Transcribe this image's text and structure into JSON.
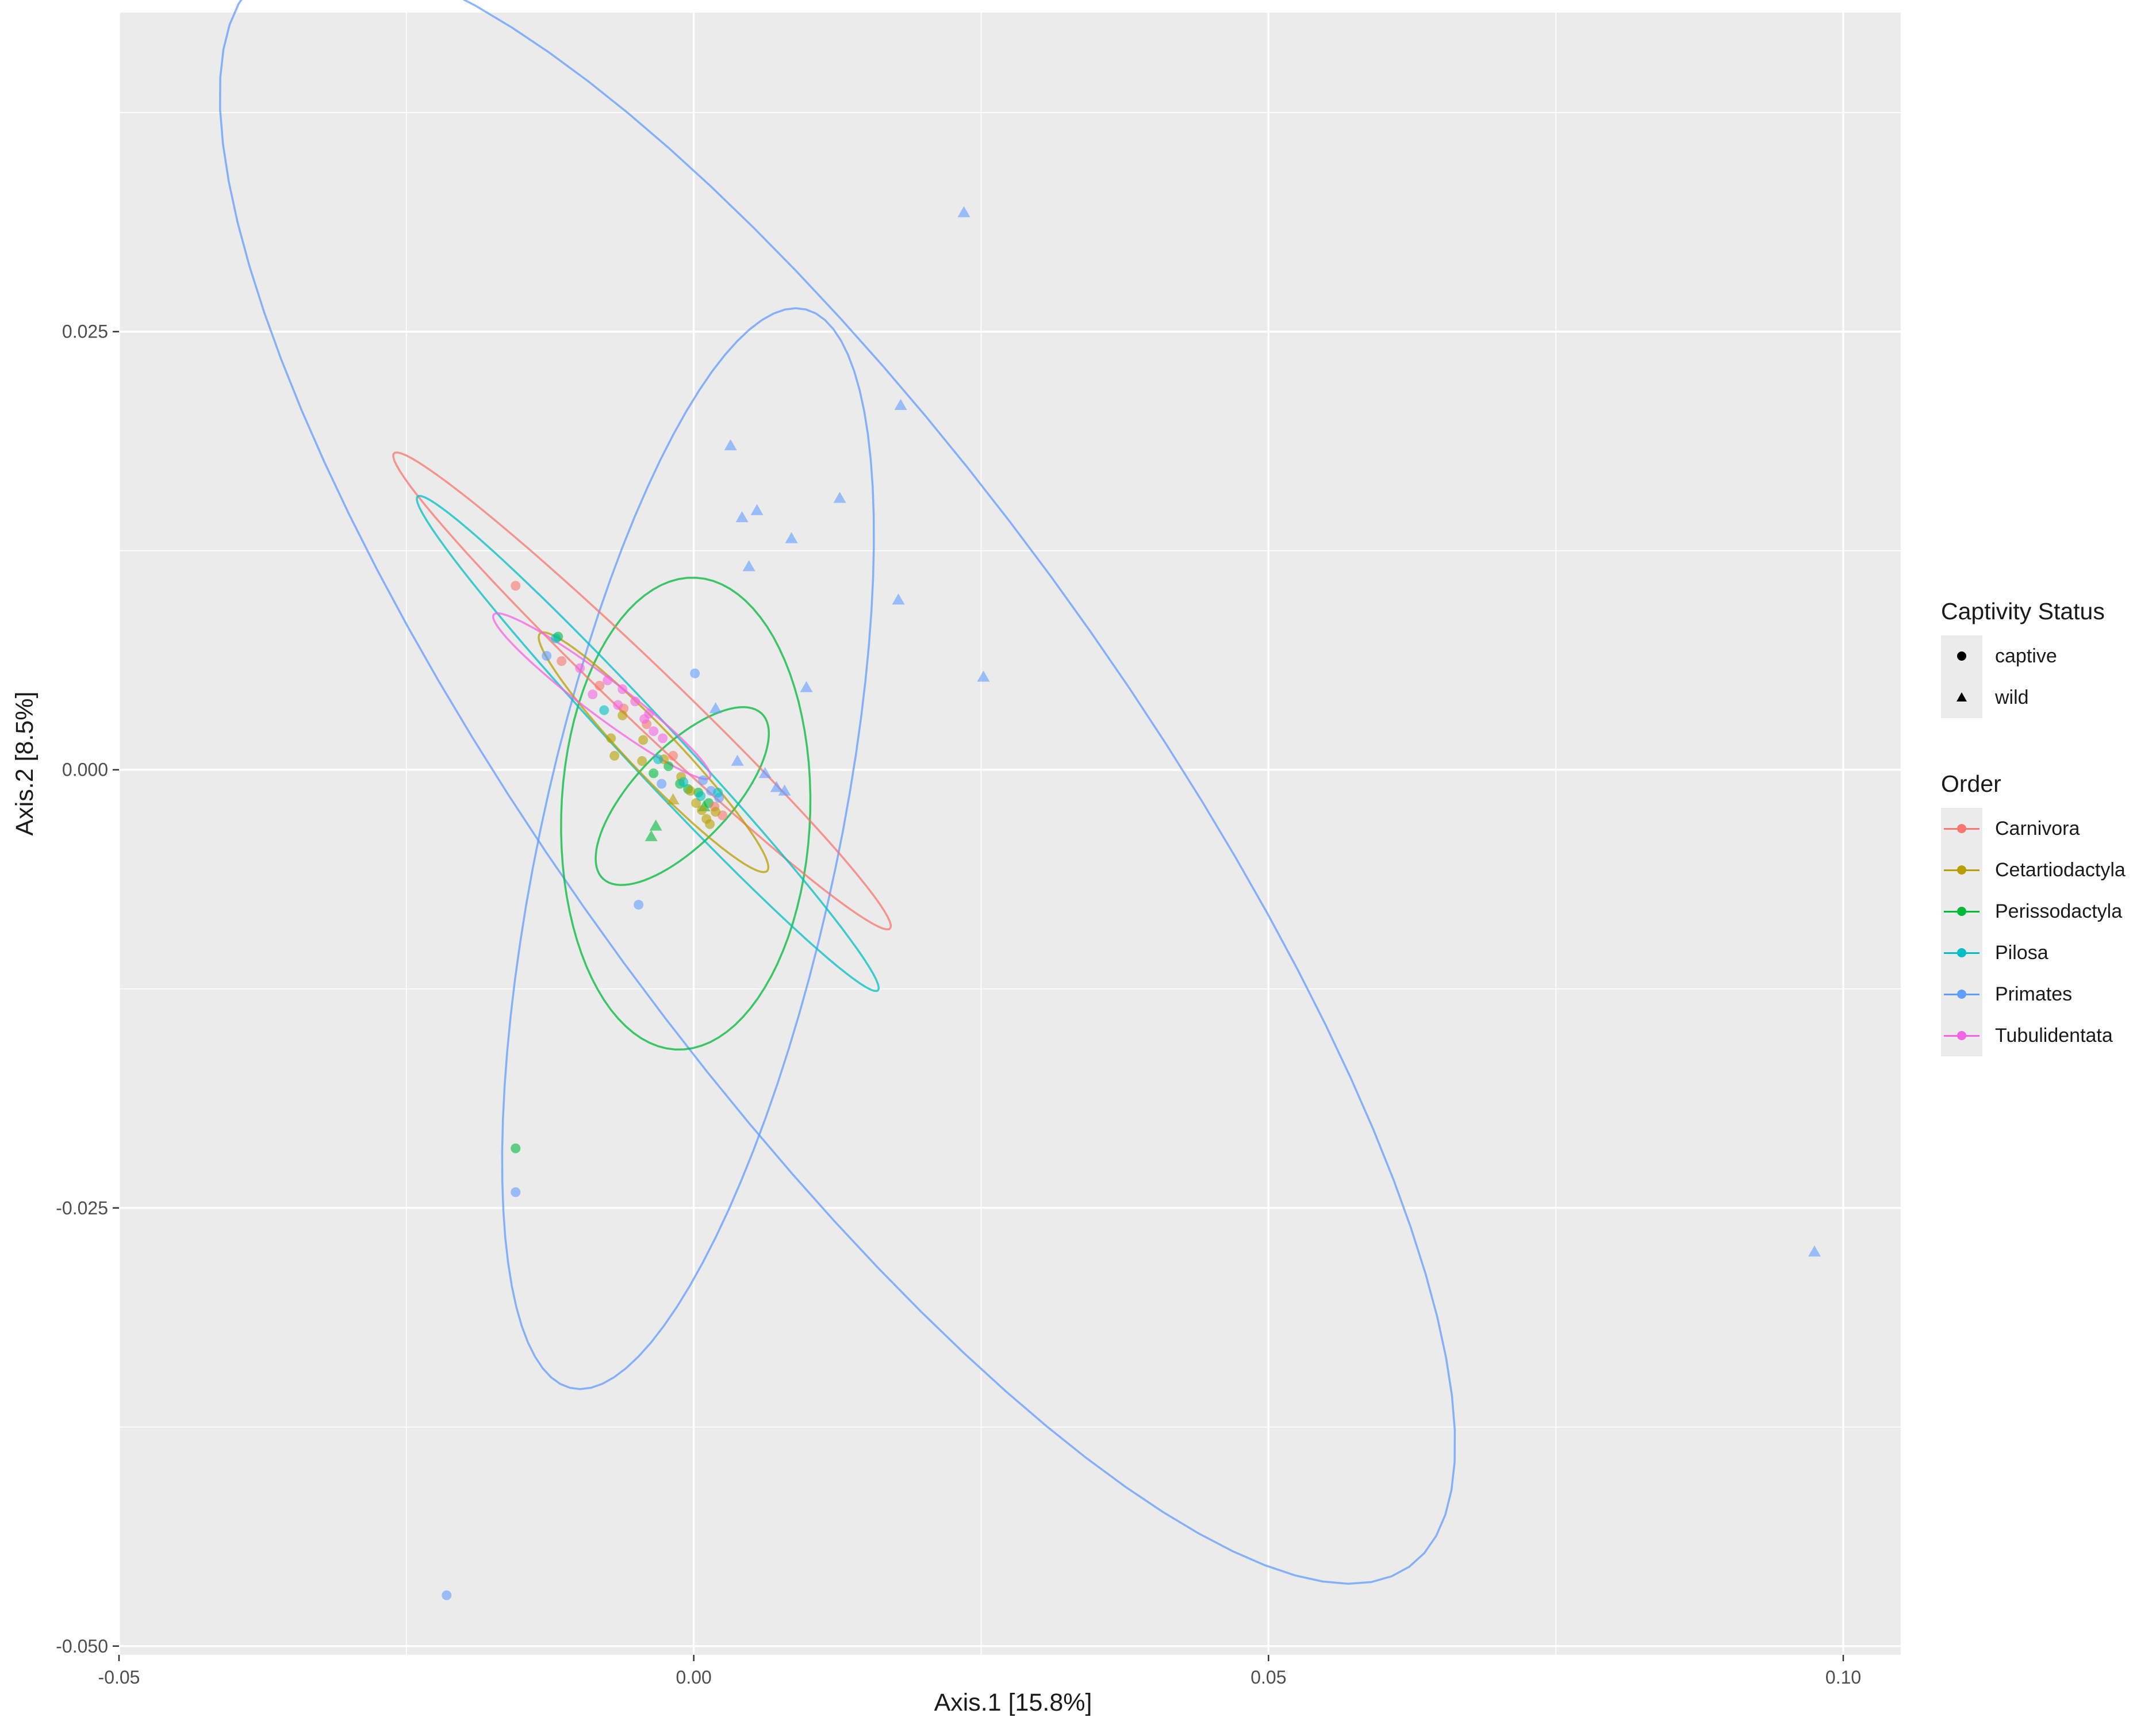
{
  "chart_data": {
    "type": "scatter",
    "xlabel": "Axis.1   [15.8%]",
    "ylabel": "Axis.2   [8.5%]",
    "xlim": [
      -0.05,
      0.105
    ],
    "ylim": [
      -0.0505,
      0.0432
    ],
    "x_ticks": [
      -0.05,
      0.0,
      0.05,
      0.1
    ],
    "x_tick_labels": [
      "-0.05",
      "0.00",
      "0.05",
      "0.10"
    ],
    "y_ticks": [
      -0.05,
      -0.025,
      0.0,
      0.025
    ],
    "y_tick_labels": [
      "-0.050",
      "-0.025",
      "0.000",
      "0.025"
    ],
    "grid": true,
    "legend_position": "right",
    "legends": {
      "captivity": {
        "title": "Captivity Status",
        "items": [
          {
            "label": "captive",
            "shape": "circle"
          },
          {
            "label": "wild",
            "shape": "triangle"
          }
        ]
      },
      "order": {
        "title": "Order",
        "items": [
          {
            "label": "Carnivora",
            "color": "#F8766D"
          },
          {
            "label": "Cetartiodactyla",
            "color": "#B79F00"
          },
          {
            "label": "Perissodactyla",
            "color": "#00BA38"
          },
          {
            "label": "Pilosa",
            "color": "#00BFC4"
          },
          {
            "label": "Primates",
            "color": "#619CFF"
          },
          {
            "label": "Tubulidentata",
            "color": "#F564E3"
          }
        ]
      }
    },
    "ellipses": [
      {
        "series": "Primates",
        "cx": 0.0125,
        "cy": 0.0,
        "rx": 0.068,
        "ry": 0.0205,
        "angle_deg": -40
      },
      {
        "series": "Primates",
        "cx": -0.0005,
        "cy": -0.0045,
        "rx": 0.0325,
        "ry": 0.0125,
        "angle_deg": 70
      },
      {
        "series": "Perissodactyla",
        "cx": -0.0007,
        "cy": -0.0025,
        "rx": 0.0135,
        "ry": 0.0108,
        "angle_deg": 83
      },
      {
        "series": "Perissodactyla",
        "cx": -0.001,
        "cy": -0.0015,
        "rx": 0.0085,
        "ry": 0.0032,
        "angle_deg": 30
      },
      {
        "series": "Carnivora",
        "cx": -0.0045,
        "cy": 0.0045,
        "rx": 0.0255,
        "ry": 0.0019,
        "angle_deg": -32
      },
      {
        "series": "Pilosa",
        "cx": -0.004,
        "cy": 0.0015,
        "rx": 0.0245,
        "ry": 0.0018,
        "angle_deg": -35
      },
      {
        "series": "Cetartiodactyla",
        "cx": -0.0035,
        "cy": 0.001,
        "rx": 0.012,
        "ry": 0.0016,
        "angle_deg": -34
      },
      {
        "series": "Tubulidentata",
        "cx": -0.008,
        "cy": 0.0042,
        "rx": 0.0105,
        "ry": 0.0012,
        "angle_deg": -26
      }
    ],
    "points": [
      {
        "series": "Primates",
        "shape": "triangle",
        "x": 0.0235,
        "y": 0.0318
      },
      {
        "series": "Primates",
        "shape": "triangle",
        "x": 0.018,
        "y": 0.0208
      },
      {
        "series": "Primates",
        "shape": "triangle",
        "x": 0.0032,
        "y": 0.0185
      },
      {
        "series": "Primates",
        "shape": "triangle",
        "x": 0.0127,
        "y": 0.0155
      },
      {
        "series": "Primates",
        "shape": "triangle",
        "x": 0.0055,
        "y": 0.0148
      },
      {
        "series": "Primates",
        "shape": "triangle",
        "x": 0.0042,
        "y": 0.0144
      },
      {
        "series": "Primates",
        "shape": "triangle",
        "x": 0.0085,
        "y": 0.0132
      },
      {
        "series": "Primates",
        "shape": "triangle",
        "x": 0.0048,
        "y": 0.0116
      },
      {
        "series": "Primates",
        "shape": "triangle",
        "x": 0.0178,
        "y": 0.0097
      },
      {
        "series": "Primates",
        "shape": "triangle",
        "x": 0.0252,
        "y": 0.0053
      },
      {
        "series": "Primates",
        "shape": "triangle",
        "x": 0.0098,
        "y": 0.0047
      },
      {
        "series": "Primates",
        "shape": "triangle",
        "x": 0.0019,
        "y": 0.0035
      },
      {
        "series": "Primates",
        "shape": "triangle",
        "x": 0.0038,
        "y": 0.0005
      },
      {
        "series": "Primates",
        "shape": "triangle",
        "x": 0.0062,
        "y": -0.0002
      },
      {
        "series": "Primates",
        "shape": "triangle",
        "x": 0.0072,
        "y": -0.001
      },
      {
        "series": "Primates",
        "shape": "triangle",
        "x": 0.0079,
        "y": -0.0012
      },
      {
        "series": "Primates",
        "shape": "triangle",
        "x": 0.0975,
        "y": -0.0275
      },
      {
        "series": "Primates",
        "shape": "circle",
        "x": 0.0001,
        "y": 0.0055
      },
      {
        "series": "Primates",
        "shape": "circle",
        "x": -0.0128,
        "y": 0.0065
      },
      {
        "series": "Primates",
        "shape": "circle",
        "x": -0.0048,
        "y": -0.0077
      },
      {
        "series": "Primates",
        "shape": "circle",
        "x": -0.0155,
        "y": -0.0241
      },
      {
        "series": "Primates",
        "shape": "circle",
        "x": -0.0215,
        "y": -0.0471
      },
      {
        "series": "Primates",
        "shape": "circle",
        "x": -0.0028,
        "y": -0.0008
      },
      {
        "series": "Primates",
        "shape": "circle",
        "x": 0.0015,
        "y": -0.0012
      },
      {
        "series": "Primates",
        "shape": "circle",
        "x": 0.0022,
        "y": -0.0016
      },
      {
        "series": "Primates",
        "shape": "circle",
        "x": 0.0008,
        "y": -0.0006
      },
      {
        "series": "Perissodactyla",
        "shape": "circle",
        "x": -0.0155,
        "y": -0.0216
      },
      {
        "series": "Perissodactyla",
        "shape": "circle",
        "x": -0.0118,
        "y": 0.0076
      },
      {
        "series": "Perissodactyla",
        "shape": "triangle",
        "x": -0.0037,
        "y": -0.0038
      },
      {
        "series": "Perissodactyla",
        "shape": "triangle",
        "x": -0.0033,
        "y": -0.0032
      },
      {
        "series": "Perissodactyla",
        "shape": "circle",
        "x": -0.0035,
        "y": -0.0002
      },
      {
        "series": "Perissodactyla",
        "shape": "circle",
        "x": -0.0022,
        "y": 0.0002
      },
      {
        "series": "Perissodactyla",
        "shape": "circle",
        "x": -0.0012,
        "y": -0.0008
      },
      {
        "series": "Perissodactyla",
        "shape": "circle",
        "x": -0.0005,
        "y": -0.0011
      },
      {
        "series": "Perissodactyla",
        "shape": "circle",
        "x": 0.0004,
        "y": -0.0013
      },
      {
        "series": "Perissodactyla",
        "shape": "circle",
        "x": 0.0013,
        "y": -0.0019
      },
      {
        "series": "Perissodactyla",
        "shape": "triangle",
        "x": 0.0009,
        "y": -0.0021
      },
      {
        "series": "Carnivora",
        "shape": "circle",
        "x": -0.0155,
        "y": 0.0105
      },
      {
        "series": "Carnivora",
        "shape": "circle",
        "x": -0.0115,
        "y": 0.0062
      },
      {
        "series": "Carnivora",
        "shape": "circle",
        "x": -0.0082,
        "y": 0.0048
      },
      {
        "series": "Carnivora",
        "shape": "circle",
        "x": -0.0061,
        "y": 0.0035
      },
      {
        "series": "Carnivora",
        "shape": "circle",
        "x": -0.0041,
        "y": 0.0026
      },
      {
        "series": "Carnivora",
        "shape": "circle",
        "x": -0.0018,
        "y": 0.0008
      },
      {
        "series": "Carnivora",
        "shape": "circle",
        "x": 0.0018,
        "y": -0.0021
      },
      {
        "series": "Carnivora",
        "shape": "circle",
        "x": 0.0025,
        "y": -0.0026
      },
      {
        "series": "Cetartiodactyla",
        "shape": "circle",
        "x": -0.0072,
        "y": 0.0018
      },
      {
        "series": "Cetartiodactyla",
        "shape": "circle",
        "x": -0.0069,
        "y": 0.0008
      },
      {
        "series": "Cetartiodactyla",
        "shape": "circle",
        "x": -0.0045,
        "y": 0.0005
      },
      {
        "series": "Cetartiodactyla",
        "shape": "circle",
        "x": -0.0062,
        "y": 0.0031
      },
      {
        "series": "Cetartiodactyla",
        "shape": "circle",
        "x": -0.0044,
        "y": 0.0017
      },
      {
        "series": "Cetartiodactyla",
        "shape": "circle",
        "x": -0.0026,
        "y": 0.0006
      },
      {
        "series": "Cetartiodactyla",
        "shape": "circle",
        "x": -0.0011,
        "y": -0.0004
      },
      {
        "series": "Cetartiodactyla",
        "shape": "circle",
        "x": -0.0003,
        "y": -0.0012
      },
      {
        "series": "Cetartiodactyla",
        "shape": "circle",
        "x": 0.0002,
        "y": -0.0019
      },
      {
        "series": "Cetartiodactyla",
        "shape": "circle",
        "x": 0.0007,
        "y": -0.0023
      },
      {
        "series": "Cetartiodactyla",
        "shape": "circle",
        "x": 0.0011,
        "y": -0.0028
      },
      {
        "series": "Cetartiodactyla",
        "shape": "circle",
        "x": 0.0014,
        "y": -0.0031
      },
      {
        "series": "Cetartiodactyla",
        "shape": "circle",
        "x": 0.0019,
        "y": -0.0024
      },
      {
        "series": "Cetartiodactyla",
        "shape": "triangle",
        "x": -0.0018,
        "y": -0.0017
      },
      {
        "series": "Pilosa",
        "shape": "circle",
        "x": -0.0078,
        "y": 0.0034
      },
      {
        "series": "Pilosa",
        "shape": "circle",
        "x": -0.0031,
        "y": 0.0006
      },
      {
        "series": "Pilosa",
        "shape": "circle",
        "x": -0.0009,
        "y": -0.0007
      },
      {
        "series": "Pilosa",
        "shape": "circle",
        "x": 0.0006,
        "y": -0.0015
      },
      {
        "series": "Pilosa",
        "shape": "circle",
        "x": 0.0021,
        "y": -0.0013
      },
      {
        "series": "Pilosa",
        "shape": "circle",
        "x": -0.012,
        "y": 0.0075
      },
      {
        "series": "Tubulidentata",
        "shape": "circle",
        "x": -0.0088,
        "y": 0.0043
      },
      {
        "series": "Tubulidentata",
        "shape": "circle",
        "x": -0.0075,
        "y": 0.0051
      },
      {
        "series": "Tubulidentata",
        "shape": "circle",
        "x": -0.0062,
        "y": 0.0046
      },
      {
        "series": "Tubulidentata",
        "shape": "circle",
        "x": -0.0051,
        "y": 0.0039
      },
      {
        "series": "Tubulidentata",
        "shape": "circle",
        "x": -0.0043,
        "y": 0.0029
      },
      {
        "series": "Tubulidentata",
        "shape": "circle",
        "x": -0.0035,
        "y": 0.0022
      },
      {
        "series": "Tubulidentata",
        "shape": "circle",
        "x": -0.0027,
        "y": 0.0018
      },
      {
        "series": "Tubulidentata",
        "shape": "circle",
        "x": -0.0099,
        "y": 0.0058
      },
      {
        "series": "Tubulidentata",
        "shape": "circle",
        "x": -0.0066,
        "y": 0.0037
      },
      {
        "series": "Tubulidentata",
        "shape": "circle",
        "x": -0.0039,
        "y": 0.0032
      }
    ]
  }
}
